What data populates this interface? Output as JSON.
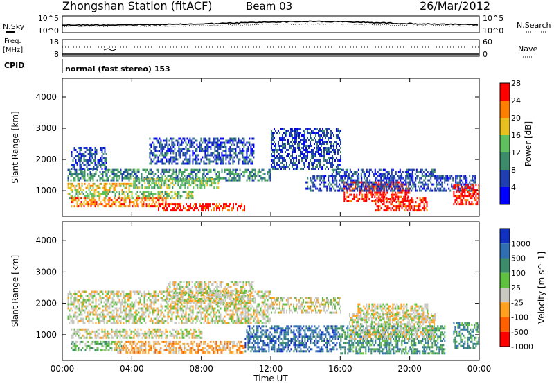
{
  "header": {
    "title": "Zhongshan Station (fitACF)",
    "beam": "Beam 03",
    "date": "26/Mar/2012"
  },
  "top_panels": {
    "nsky_label": "N.Sky",
    "nsearch_label": "N.Search",
    "nsky_ticks": [
      "10^5",
      "10^0"
    ],
    "freq_label_1": "Freq.",
    "freq_label_2": "[MHz]",
    "freq_ticks": [
      "18",
      "8"
    ],
    "nave_label": "Nave",
    "nave_ticks": [
      "60",
      "0"
    ],
    "cpid_label": "CPID",
    "cpid_text": "normal (fast stereo) 153"
  },
  "chart_data": [
    {
      "type": "heatmap",
      "ylabel": "Slant Range [km]",
      "xlabel": "Time UT",
      "x_ticks": [
        "00:00",
        "04:00",
        "08:00",
        "12:00",
        "16:00",
        "20:00",
        "00:00"
      ],
      "y_ticks": [
        1000,
        2000,
        3000,
        4000
      ],
      "ylim": [
        180,
        4600
      ],
      "xlim_hours": [
        0,
        24
      ],
      "colorbar": {
        "label": "Power [dB]",
        "ticks": [
          4,
          8,
          12,
          16,
          20,
          24,
          28
        ],
        "colors": [
          "#0000ff",
          "#1f3fb0",
          "#3c8c6c",
          "#60c060",
          "#e8c020",
          "#ff8000",
          "#ff0000"
        ]
      },
      "regions": [
        {
          "t": [
            0.3,
            12.0
          ],
          "r": [
            1350,
            1700
          ],
          "level": 2
        },
        {
          "t": [
            0.5,
            2.5
          ],
          "r": [
            1700,
            2400
          ],
          "level": 1
        },
        {
          "t": [
            0.3,
            4.0
          ],
          "r": [
            1050,
            1250
          ],
          "level": 4
        },
        {
          "t": [
            0.3,
            7.5
          ],
          "r": [
            800,
            1000
          ],
          "level": 3
        },
        {
          "t": [
            0.5,
            6.0
          ],
          "r": [
            500,
            800
          ],
          "level": 5
        },
        {
          "t": [
            5.5,
            10.5
          ],
          "r": [
            350,
            600
          ],
          "level": 6
        },
        {
          "t": [
            4.0,
            9.0
          ],
          "r": [
            1100,
            1400
          ],
          "level": 3
        },
        {
          "t": [
            5.0,
            11.0
          ],
          "r": [
            1900,
            2700
          ],
          "level": 1
        },
        {
          "t": [
            12.0,
            16.0
          ],
          "r": [
            1700,
            3000
          ],
          "level": 1
        },
        {
          "t": [
            15.5,
            21.5
          ],
          "r": [
            1500,
            1700
          ],
          "level": 1
        },
        {
          "t": [
            16.2,
            20.0
          ],
          "r": [
            700,
            1300
          ],
          "level": 6
        },
        {
          "t": [
            18.0,
            21.0
          ],
          "r": [
            400,
            800
          ],
          "level": 6
        },
        {
          "t": [
            14.0,
            23.8
          ],
          "r": [
            1000,
            1500
          ],
          "level": 1
        },
        {
          "t": [
            22.5,
            24.0
          ],
          "r": [
            600,
            1200
          ],
          "level": 6
        }
      ]
    },
    {
      "type": "heatmap",
      "ylabel": "Slant Range [km]",
      "xlabel": "Time UT",
      "x_ticks": [
        "00:00",
        "04:00",
        "08:00",
        "12:00",
        "16:00",
        "20:00",
        "00:00"
      ],
      "y_ticks": [
        1000,
        2000,
        3000,
        4000
      ],
      "ylim": [
        180,
        4600
      ],
      "xlim_hours": [
        0,
        24
      ],
      "colorbar": {
        "label": "Velocity [m s^-1]",
        "ticks": [
          1000,
          500,
          100,
          25,
          -25,
          -100,
          -500,
          -1000
        ],
        "colors": [
          "#1030c0",
          "#2f6fb0",
          "#3c8c6c",
          "#60c040",
          "#c8c8c0",
          "#ffa020",
          "#ff6000",
          "#ff0000"
        ]
      },
      "regions": [
        {
          "t": [
            0.3,
            12.0
          ],
          "r": [
            1350,
            2400
          ],
          "level": 4
        },
        {
          "t": [
            6.0,
            11.0
          ],
          "r": [
            2000,
            2700
          ],
          "level": 4
        },
        {
          "t": [
            0.5,
            8.0
          ],
          "r": [
            900,
            1200
          ],
          "level": 4
        },
        {
          "t": [
            0.5,
            3.5
          ],
          "r": [
            500,
            800
          ],
          "level": 3
        },
        {
          "t": [
            3.0,
            10.5
          ],
          "r": [
            450,
            800
          ],
          "level": 5
        },
        {
          "t": [
            12.0,
            16.0
          ],
          "r": [
            1700,
            2200
          ],
          "level": 4
        },
        {
          "t": [
            10.5,
            16.0
          ],
          "r": [
            500,
            1300
          ],
          "level": 1
        },
        {
          "t": [
            16.0,
            22.0
          ],
          "r": [
            400,
            1300
          ],
          "level": 2
        },
        {
          "t": [
            16.5,
            21.5
          ],
          "r": [
            900,
            1700
          ],
          "level": 4
        },
        {
          "t": [
            22.5,
            24.0
          ],
          "r": [
            600,
            1400
          ],
          "level": 2
        },
        {
          "t": [
            17.0,
            21.0
          ],
          "r": [
            1500,
            2000
          ],
          "level": 4
        }
      ]
    }
  ]
}
